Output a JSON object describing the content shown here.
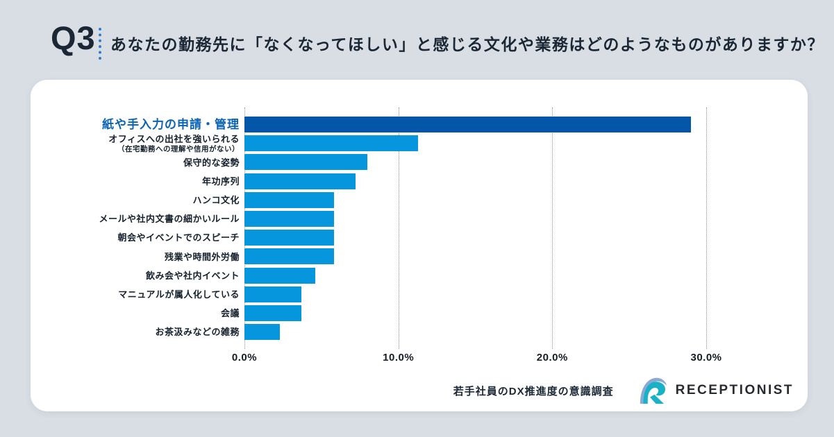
{
  "header": {
    "badge": "Q3",
    "question": "あなたの勤務先に「なくなってほしい」と感じる文化や業務はどのようなものがありますか？"
  },
  "chart_data": {
    "type": "bar",
    "orientation": "horizontal",
    "title": "",
    "categories": [
      "紙や手入力の申請・管理",
      "オフィスへの出社を強いられる",
      "保守的な姿勢",
      "年功序列",
      "ハンコ文化",
      "メールや社内文書の細かいルール",
      "朝会やイベントでのスピーチ",
      "残業や時間外労働",
      "飲み会や社内イベント",
      "マニュアルが属人化している",
      "会議",
      "お茶汲みなどの雑務"
    ],
    "category_notes": [
      "",
      "（在宅勤務への理解や信用がない）",
      "",
      "",
      "",
      "",
      "",
      "",
      "",
      "",
      "",
      ""
    ],
    "values": [
      29.0,
      11.3,
      8.0,
      7.2,
      5.8,
      5.8,
      5.8,
      5.8,
      4.6,
      3.7,
      3.7,
      2.3
    ],
    "unit": "%",
    "xlim": [
      0,
      33.5
    ],
    "x_ticks": [
      "0.0%",
      "10.0%",
      "20.0%",
      "30.0%"
    ],
    "x_tick_values": [
      0,
      10,
      20,
      30
    ],
    "grid": "vertical-dotted",
    "legend": "none",
    "highlight_index": 0
  },
  "footer": {
    "source": "若手社員のDX推進度の意識調査",
    "brand": "RECEPTIONIST"
  },
  "colors": {
    "background": "#d9dee5",
    "card": "#ffffff",
    "bar": "#0696dd",
    "bar_highlight": "#0356a8",
    "highlight_label": "#0b63b6",
    "text_dark": "#1b2734",
    "divider_blue": "#2f7dd2",
    "logo_teal": "#19b1c5",
    "logo_light_blue": "#8aa9d6"
  }
}
